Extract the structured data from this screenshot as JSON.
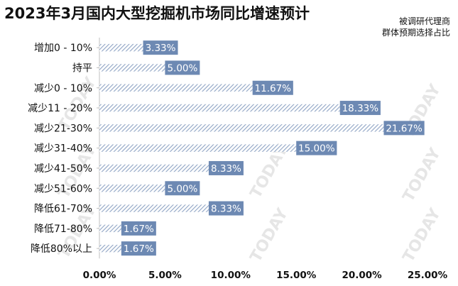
{
  "title": "2023年3月国内大型挖掘机市场同比增速预计",
  "note": {
    "line1": "被调研代理商",
    "line2": "群体预期选择占比"
  },
  "chart_data": {
    "type": "bar",
    "orientation": "horizontal",
    "categories": [
      "增加0 - 10%",
      "持平",
      "减少0 - 10%",
      "减少11 - 20%",
      "减少21-30%",
      "减少31-40%",
      "减少41-50%",
      "减少51-60%",
      "降低61-70%",
      "降低71-80%",
      "降低80%以上"
    ],
    "values": [
      3.33,
      5.0,
      11.67,
      18.33,
      21.67,
      15.0,
      8.33,
      5.0,
      8.33,
      1.67,
      1.67
    ],
    "value_labels": [
      "3.33%",
      "5.00%",
      "11.67%",
      "18.33%",
      "21.67%",
      "15.00%",
      "8.33%",
      "5.00%",
      "8.33%",
      "1.67%",
      "1.67%"
    ],
    "xlim": [
      0,
      25
    ],
    "xticks": [
      "0.00%",
      "5.00%",
      "10.00%",
      "15.00%",
      "20.00%",
      "25.00%"
    ],
    "grid": false,
    "bar_color": "#8fa4c4",
    "label_bg": "#6d89b3",
    "label_color": "#ffffff"
  },
  "watermark": {
    "text": "TODAY"
  }
}
